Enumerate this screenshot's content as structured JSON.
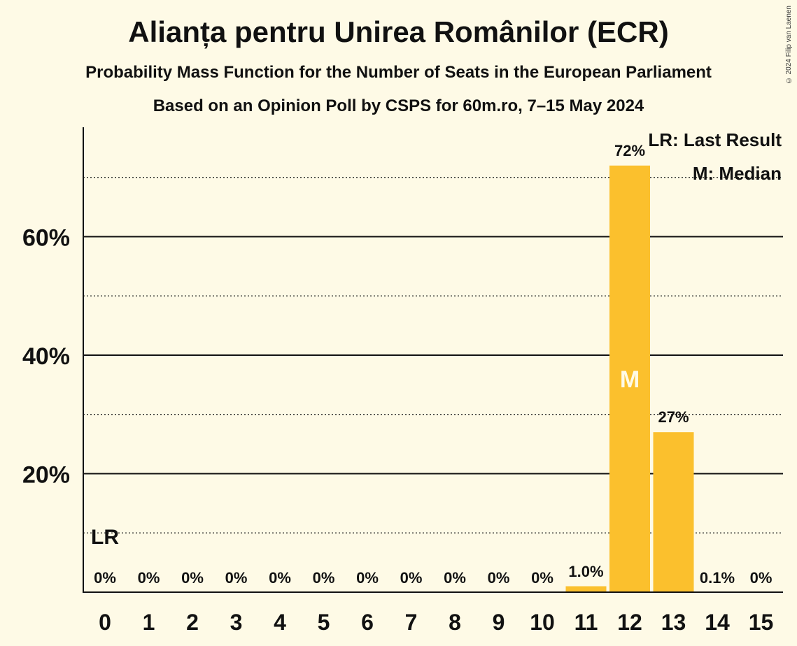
{
  "title": "Alianța pentru Unirea Românilor (ECR)",
  "subtitle": "Probability Mass Function for the Number of Seats in the European Parliament",
  "subtitle2": "Based on an Opinion Poll by CSPS for 60m.ro, 7–15 May 2024",
  "copyright": "© 2024 Filip van Laenen",
  "colors": {
    "bar": "#fbc02d",
    "background": "#fefae6",
    "text": "#111111"
  },
  "legend": {
    "lr": "LR: Last Result",
    "median": "M: Median"
  },
  "chart_data": {
    "type": "bar",
    "categories": [
      "0",
      "1",
      "2",
      "3",
      "4",
      "5",
      "6",
      "7",
      "8",
      "9",
      "10",
      "11",
      "12",
      "13",
      "14",
      "15"
    ],
    "values": [
      0,
      0,
      0,
      0,
      0,
      0,
      0,
      0,
      0,
      0,
      0,
      1.0,
      72,
      27,
      0.1,
      0
    ],
    "data_labels": [
      "0%",
      "0%",
      "0%",
      "0%",
      "0%",
      "0%",
      "0%",
      "0%",
      "0%",
      "0%",
      "0%",
      "1.0%",
      "72%",
      "27%",
      "0.1%",
      "0%"
    ],
    "ylim": [
      0,
      78
    ],
    "y_ticks": [
      20,
      40,
      60
    ],
    "y_tick_labels": [
      "20%",
      "40%",
      "60%"
    ],
    "y_minor_ticks": [
      10,
      30,
      50,
      70
    ],
    "last_result_seat": "0",
    "last_result_label": "LR",
    "median_seat": "12",
    "median_label": "M",
    "legend_placement": "top-right",
    "grid": true
  }
}
